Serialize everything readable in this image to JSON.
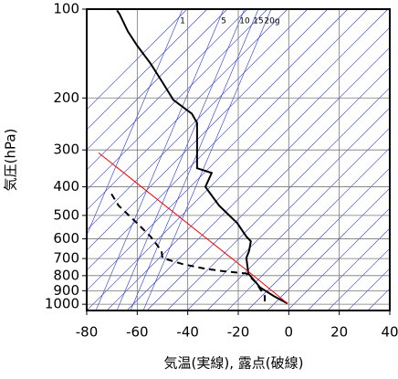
{
  "chart_data": {
    "type": "line",
    "xlabel": "気温(実線), 露点(破線)",
    "ylabel": "気圧(hPa)",
    "xlim": [
      -80,
      40
    ],
    "xticks": [
      -80,
      -60,
      -40,
      -20,
      0,
      20,
      40
    ],
    "ylim": [
      1050,
      100
    ],
    "yticks": [
      100,
      200,
      300,
      400,
      500,
      600,
      700,
      800,
      900,
      1000
    ],
    "log_y": true,
    "grid": true,
    "annotations": [
      "1",
      "5",
      "10",
      "15",
      "20g"
    ],
    "series": [
      {
        "color": "#000000",
        "dash": "solid",
        "x": [
          -68,
          -67,
          -63.7,
          -60,
          -54.7,
          -50,
          -45.7,
          -38.4,
          -36.3,
          -36.3,
          -30.5,
          -33,
          -27.6,
          -20.4,
          -16.8,
          -15,
          -15.7,
          -16.8,
          -16,
          -11.3,
          -5.9,
          -0.5
        ],
        "y": [
          101,
          104,
          119,
          133,
          153,
          177,
          203,
          226,
          243,
          346,
          359,
          400,
          463,
          531,
          590,
          612,
          659,
          697,
          787,
          878,
          938,
          994
        ]
      },
      {
        "color": "#000000",
        "dash": "dashed",
        "x": [
          -70.2,
          -67.4,
          -60.1,
          -54.7,
          -50.4,
          -50,
          -42,
          -33,
          -25.8,
          -16.8,
          -13.1,
          -9.5,
          -9.5
        ],
        "y": [
          423,
          463,
          531,
          590,
          659,
          697,
          731,
          758,
          773,
          787,
          842,
          938,
          994
        ]
      },
      {
        "color": "#ff0000",
        "dash": "solid",
        "x": [
          -75.3,
          -15,
          -0.5
        ],
        "y": [
          307,
          787,
          994
        ]
      }
    ]
  }
}
